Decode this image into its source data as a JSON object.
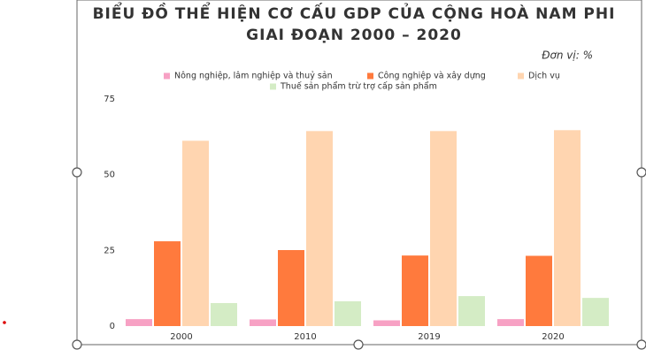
{
  "chart_data": {
    "type": "bar",
    "title": "BIỂU ĐỒ THỂ HIỆN CƠ CẤU GDP CỦA CỘNG HOÀ NAM PHI",
    "subtitle": "GIAI ĐOẠN 2000 – 2020",
    "unit_note": "Đơn vị: %",
    "categories": [
      "2000",
      "2010",
      "2019",
      "2020"
    ],
    "series": [
      {
        "name": "Nông nghiệp, lâm nghiệp và thuỷ sản",
        "color": "#f7a1c4",
        "values": [
          2.3,
          2.2,
          1.9,
          2.3
        ]
      },
      {
        "name": "Công nghiệp và xây dựng",
        "color": "#ff7a3d",
        "values": [
          28.0,
          25.1,
          23.3,
          23.2
        ]
      },
      {
        "name": "Dịch vụ",
        "color": "#ffd5b0",
        "values": [
          61.2,
          64.4,
          64.4,
          64.7
        ]
      },
      {
        "name": "Thuế sản phẩm trừ trợ cấp sản phẩm",
        "color": "#d4ecc5",
        "values": [
          7.6,
          8.2,
          9.9,
          9.3
        ]
      }
    ],
    "ylim": [
      0,
      75
    ],
    "yticks": [
      0,
      25,
      50,
      75
    ],
    "grid": false
  }
}
